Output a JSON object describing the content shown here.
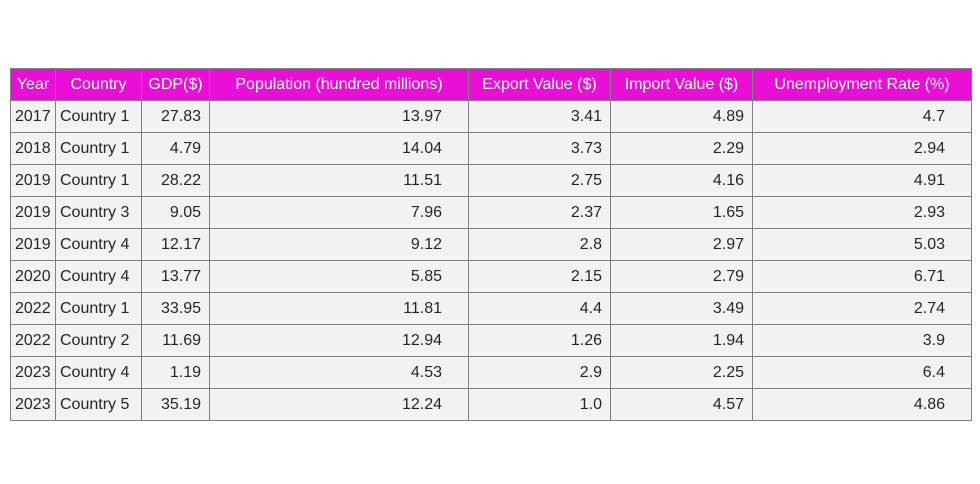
{
  "chart_data": {
    "type": "table",
    "header_color": "#ea0fd6",
    "cell_color": "#f2f2f2",
    "columns": [
      "Year",
      "Country",
      "GDP($)",
      "Population (hundred millions)",
      "Export Value ($)",
      "Import Value ($)",
      "Unemployment Rate (%)"
    ],
    "rows": [
      [
        "2017",
        "Country 1",
        "27.83",
        "13.97",
        "3.41",
        "4.89",
        "4.7"
      ],
      [
        "2018",
        "Country 1",
        "4.79",
        "14.04",
        "3.73",
        "2.29",
        "2.94"
      ],
      [
        "2019",
        "Country 1",
        "28.22",
        "11.51",
        "2.75",
        "4.16",
        "4.91"
      ],
      [
        "2019",
        "Country 3",
        "9.05",
        "7.96",
        "2.37",
        "1.65",
        "2.93"
      ],
      [
        "2019",
        "Country 4",
        "12.17",
        "9.12",
        "2.8",
        "2.97",
        "5.03"
      ],
      [
        "2020",
        "Country 4",
        "13.77",
        "5.85",
        "2.15",
        "2.79",
        "6.71"
      ],
      [
        "2022",
        "Country 1",
        "33.95",
        "11.81",
        "4.4",
        "3.49",
        "2.74"
      ],
      [
        "2022",
        "Country 2",
        "11.69",
        "12.94",
        "1.26",
        "1.94",
        "3.9"
      ],
      [
        "2023",
        "Country 4",
        "1.19",
        "4.53",
        "2.9",
        "2.25",
        "6.4"
      ],
      [
        "2023",
        "Country 5",
        "35.19",
        "12.24",
        "1.0",
        "4.57",
        "4.86"
      ]
    ]
  }
}
